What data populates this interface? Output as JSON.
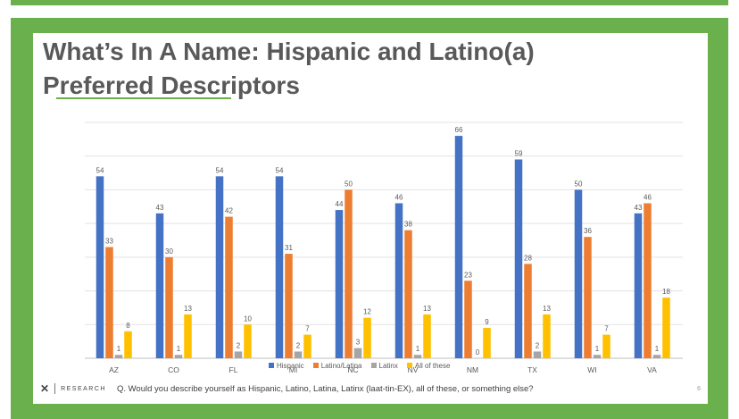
{
  "slide": {
    "title_line1": "What’s In A Name: Hispanic and Latino(a)",
    "title_line2": "Preferred Descriptors",
    "footer": {
      "logo": "✕",
      "brand": "RESEARCH",
      "question": "Q. Would you describe yourself as Hispanic, Latino, Latina, Latinx (laat-tin-EX), all of these, or something else?",
      "page_number": "6"
    }
  },
  "colors": {
    "frame": "#6ab04c",
    "hispanic": "#4472c4",
    "latino": "#ed7d31",
    "latinx": "#a5a5a5",
    "all": "#ffc000"
  },
  "chart_data": {
    "type": "bar",
    "categories": [
      "AZ",
      "CO",
      "FL",
      "MI",
      "NC",
      "NV",
      "NM",
      "TX",
      "WI",
      "VA"
    ],
    "series": [
      {
        "name": "Hispanic",
        "values": [
          54,
          43,
          54,
          54,
          44,
          46,
          66,
          59,
          50,
          43
        ]
      },
      {
        "name": "Latino/Latina",
        "values": [
          33,
          30,
          42,
          31,
          50,
          38,
          23,
          28,
          36,
          46
        ]
      },
      {
        "name": "Latinx",
        "values": [
          1,
          1,
          2,
          2,
          3,
          1,
          0,
          2,
          1,
          1
        ]
      },
      {
        "name": "All of these",
        "values": [
          8,
          13,
          10,
          7,
          12,
          13,
          9,
          13,
          7,
          18
        ]
      }
    ],
    "ylim": [
      0,
      70
    ],
    "grid": true,
    "legend_position": "bottom"
  }
}
